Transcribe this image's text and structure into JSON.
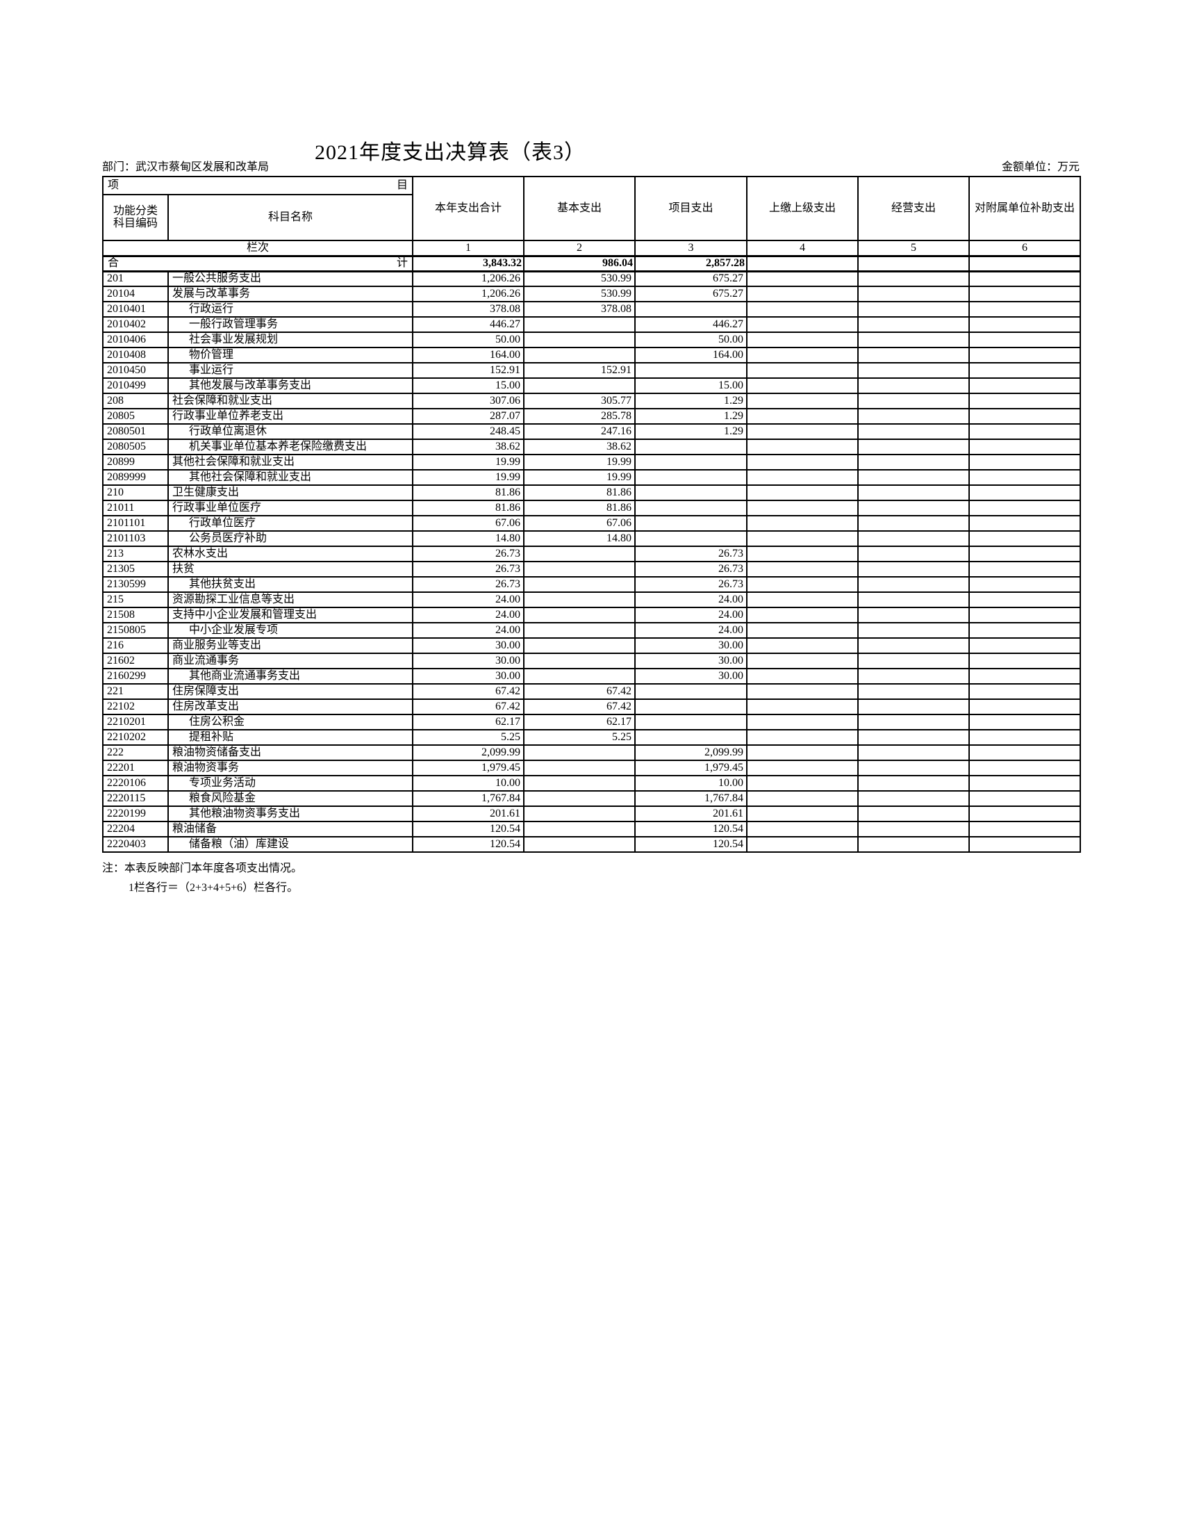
{
  "page": {
    "title": "2021年度支出决算表（表3）",
    "department": "部门：武汉市蔡甸区发展和改革局",
    "unit": "金额单位：万元",
    "notes": [
      "注：本表反映部门本年度各项支出情况。",
      "1栏各行＝（2+3+4+5+6）栏各行。"
    ]
  },
  "table": {
    "header": {
      "item_left": "项",
      "item_right": "目",
      "code_line1": "功能分类",
      "code_line2": "科目编码",
      "subject": "科目名称",
      "columns": [
        "本年支出合计",
        "基本支出",
        "项目支出",
        "上缴上级支出",
        "经营支出",
        "对附属单位补助支出"
      ],
      "lanci": "栏次",
      "numbers": [
        "1",
        "2",
        "3",
        "4",
        "5",
        "6"
      ]
    },
    "total": {
      "label_left": "合",
      "label_right": "计",
      "values": [
        "3,843.32",
        "986.04",
        "2,857.28",
        "",
        "",
        ""
      ]
    },
    "rows": [
      {
        "code": "201",
        "name": "一般公共服务支出",
        "indent": 0,
        "v": [
          "1,206.26",
          "530.99",
          "675.27"
        ]
      },
      {
        "code": "20104",
        "name": "发展与改革事务",
        "indent": 0,
        "v": [
          "1,206.26",
          "530.99",
          "675.27"
        ]
      },
      {
        "code": "2010401",
        "name": "行政运行",
        "indent": 1,
        "v": [
          "378.08",
          "378.08",
          ""
        ]
      },
      {
        "code": "2010402",
        "name": "一般行政管理事务",
        "indent": 1,
        "v": [
          "446.27",
          "",
          "446.27"
        ]
      },
      {
        "code": "2010406",
        "name": "社会事业发展规划",
        "indent": 1,
        "v": [
          "50.00",
          "",
          "50.00"
        ]
      },
      {
        "code": "2010408",
        "name": "物价管理",
        "indent": 1,
        "v": [
          "164.00",
          "",
          "164.00"
        ]
      },
      {
        "code": "2010450",
        "name": "事业运行",
        "indent": 1,
        "v": [
          "152.91",
          "152.91",
          ""
        ]
      },
      {
        "code": "2010499",
        "name": "其他发展与改革事务支出",
        "indent": 1,
        "v": [
          "15.00",
          "",
          "15.00"
        ]
      },
      {
        "code": "208",
        "name": "社会保障和就业支出",
        "indent": 0,
        "v": [
          "307.06",
          "305.77",
          "1.29"
        ]
      },
      {
        "code": "20805",
        "name": "行政事业单位养老支出",
        "indent": 0,
        "v": [
          "287.07",
          "285.78",
          "1.29"
        ]
      },
      {
        "code": "2080501",
        "name": "行政单位离退休",
        "indent": 1,
        "v": [
          "248.45",
          "247.16",
          "1.29"
        ]
      },
      {
        "code": "2080505",
        "name": "机关事业单位基本养老保险缴费支出",
        "indent": 1,
        "v": [
          "38.62",
          "38.62",
          ""
        ]
      },
      {
        "code": "20899",
        "name": "其他社会保障和就业支出",
        "indent": 0,
        "v": [
          "19.99",
          "19.99",
          ""
        ]
      },
      {
        "code": "2089999",
        "name": "其他社会保障和就业支出",
        "indent": 1,
        "v": [
          "19.99",
          "19.99",
          ""
        ]
      },
      {
        "code": "210",
        "name": "卫生健康支出",
        "indent": 0,
        "v": [
          "81.86",
          "81.86",
          ""
        ]
      },
      {
        "code": "21011",
        "name": "行政事业单位医疗",
        "indent": 0,
        "v": [
          "81.86",
          "81.86",
          ""
        ]
      },
      {
        "code": "2101101",
        "name": "行政单位医疗",
        "indent": 1,
        "v": [
          "67.06",
          "67.06",
          ""
        ]
      },
      {
        "code": "2101103",
        "name": "公务员医疗补助",
        "indent": 1,
        "v": [
          "14.80",
          "14.80",
          ""
        ]
      },
      {
        "code": "213",
        "name": "农林水支出",
        "indent": 0,
        "v": [
          "26.73",
          "",
          "26.73"
        ]
      },
      {
        "code": "21305",
        "name": "扶贫",
        "indent": 0,
        "v": [
          "26.73",
          "",
          "26.73"
        ]
      },
      {
        "code": "2130599",
        "name": "其他扶贫支出",
        "indent": 1,
        "v": [
          "26.73",
          "",
          "26.73"
        ]
      },
      {
        "code": "215",
        "name": "资源勘探工业信息等支出",
        "indent": 0,
        "v": [
          "24.00",
          "",
          "24.00"
        ]
      },
      {
        "code": "21508",
        "name": "支持中小企业发展和管理支出",
        "indent": 0,
        "v": [
          "24.00",
          "",
          "24.00"
        ]
      },
      {
        "code": "2150805",
        "name": "中小企业发展专项",
        "indent": 1,
        "v": [
          "24.00",
          "",
          "24.00"
        ]
      },
      {
        "code": "216",
        "name": "商业服务业等支出",
        "indent": 0,
        "v": [
          "30.00",
          "",
          "30.00"
        ]
      },
      {
        "code": "21602",
        "name": "商业流通事务",
        "indent": 0,
        "v": [
          "30.00",
          "",
          "30.00"
        ]
      },
      {
        "code": "2160299",
        "name": "其他商业流通事务支出",
        "indent": 1,
        "v": [
          "30.00",
          "",
          "30.00"
        ]
      },
      {
        "code": "221",
        "name": "住房保障支出",
        "indent": 0,
        "v": [
          "67.42",
          "67.42",
          ""
        ]
      },
      {
        "code": "22102",
        "name": "住房改革支出",
        "indent": 0,
        "v": [
          "67.42",
          "67.42",
          ""
        ]
      },
      {
        "code": "2210201",
        "name": "住房公积金",
        "indent": 1,
        "v": [
          "62.17",
          "62.17",
          ""
        ]
      },
      {
        "code": "2210202",
        "name": "提租补贴",
        "indent": 1,
        "v": [
          "5.25",
          "5.25",
          ""
        ]
      },
      {
        "code": "222",
        "name": "粮油物资储备支出",
        "indent": 0,
        "v": [
          "2,099.99",
          "",
          "2,099.99"
        ]
      },
      {
        "code": "22201",
        "name": "粮油物资事务",
        "indent": 0,
        "v": [
          "1,979.45",
          "",
          "1,979.45"
        ]
      },
      {
        "code": "2220106",
        "name": "专项业务活动",
        "indent": 1,
        "v": [
          "10.00",
          "",
          "10.00"
        ]
      },
      {
        "code": "2220115",
        "name": "粮食风险基金",
        "indent": 1,
        "v": [
          "1,767.84",
          "",
          "1,767.84"
        ]
      },
      {
        "code": "2220199",
        "name": "其他粮油物资事务支出",
        "indent": 1,
        "v": [
          "201.61",
          "",
          "201.61"
        ]
      },
      {
        "code": "22204",
        "name": "粮油储备",
        "indent": 0,
        "v": [
          "120.54",
          "",
          "120.54"
        ]
      },
      {
        "code": "2220403",
        "name": "储备粮（油）库建设",
        "indent": 1,
        "v": [
          "120.54",
          "",
          "120.54"
        ]
      }
    ]
  }
}
